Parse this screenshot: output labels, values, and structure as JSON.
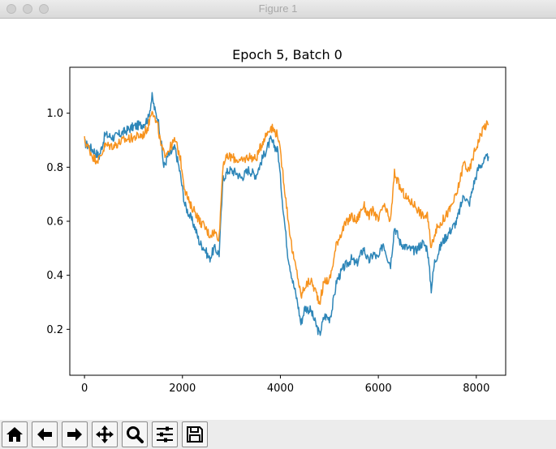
{
  "window": {
    "title": "Figure 1"
  },
  "toolbar": {
    "buttons": [
      {
        "icon": "home-icon"
      },
      {
        "icon": "back-arrow-icon"
      },
      {
        "icon": "forward-arrow-icon"
      },
      {
        "icon": "pan-move-icon"
      },
      {
        "icon": "zoom-magnifier-icon"
      },
      {
        "icon": "configure-subplots-icon"
      },
      {
        "icon": "save-disk-icon"
      }
    ]
  },
  "colors": {
    "series_blue": "#2e86b8",
    "series_orange": "#f7931e"
  },
  "chart_data": {
    "type": "line",
    "title": "Epoch 5, Batch 0",
    "xlabel": "",
    "ylabel": "",
    "xlim": [
      -300,
      8600
    ],
    "ylim": [
      0.03,
      1.17
    ],
    "xticks": [
      0,
      2000,
      4000,
      6000,
      8000
    ],
    "xtick_labels": [
      "0",
      "2000",
      "4000",
      "6000",
      "8000"
    ],
    "yticks": [
      0.2,
      0.4,
      0.6,
      0.8,
      1.0
    ],
    "ytick_labels": [
      "0.2",
      "0.4",
      "0.6",
      "0.8",
      "1.0"
    ],
    "grid": false,
    "series": [
      {
        "color": "#2e86b8",
        "points": [
          [
            0,
            0.89
          ],
          [
            200,
            0.86
          ],
          [
            300,
            0.84
          ],
          [
            420,
            0.92
          ],
          [
            600,
            0.91
          ],
          [
            800,
            0.93
          ],
          [
            1000,
            0.95
          ],
          [
            1200,
            0.96
          ],
          [
            1300,
            0.98
          ],
          [
            1380,
            1.06
          ],
          [
            1450,
            1.0
          ],
          [
            1500,
            0.98
          ],
          [
            1560,
            0.9
          ],
          [
            1620,
            0.8
          ],
          [
            1700,
            0.84
          ],
          [
            1850,
            0.87
          ],
          [
            1950,
            0.78
          ],
          [
            2050,
            0.66
          ],
          [
            2150,
            0.62
          ],
          [
            2250,
            0.58
          ],
          [
            2350,
            0.52
          ],
          [
            2450,
            0.5
          ],
          [
            2550,
            0.46
          ],
          [
            2650,
            0.5
          ],
          [
            2750,
            0.48
          ],
          [
            2790,
            0.62
          ],
          [
            2830,
            0.76
          ],
          [
            2950,
            0.79
          ],
          [
            3100,
            0.78
          ],
          [
            3200,
            0.76
          ],
          [
            3350,
            0.79
          ],
          [
            3500,
            0.77
          ],
          [
            3650,
            0.84
          ],
          [
            3800,
            0.9
          ],
          [
            3950,
            0.86
          ],
          [
            4050,
            0.66
          ],
          [
            4150,
            0.48
          ],
          [
            4250,
            0.38
          ],
          [
            4350,
            0.3
          ],
          [
            4420,
            0.22
          ],
          [
            4500,
            0.28
          ],
          [
            4620,
            0.27
          ],
          [
            4720,
            0.22
          ],
          [
            4800,
            0.18
          ],
          [
            4900,
            0.25
          ],
          [
            5000,
            0.24
          ],
          [
            5050,
            0.27
          ],
          [
            5150,
            0.38
          ],
          [
            5300,
            0.43
          ],
          [
            5450,
            0.46
          ],
          [
            5550,
            0.44
          ],
          [
            5700,
            0.5
          ],
          [
            5800,
            0.45
          ],
          [
            5900,
            0.48
          ],
          [
            6000,
            0.46
          ],
          [
            6100,
            0.52
          ],
          [
            6200,
            0.46
          ],
          [
            6250,
            0.44
          ],
          [
            6330,
            0.58
          ],
          [
            6450,
            0.52
          ],
          [
            6600,
            0.5
          ],
          [
            6750,
            0.49
          ],
          [
            6900,
            0.52
          ],
          [
            7000,
            0.5
          ],
          [
            7080,
            0.35
          ],
          [
            7150,
            0.45
          ],
          [
            7300,
            0.52
          ],
          [
            7450,
            0.56
          ],
          [
            7600,
            0.6
          ],
          [
            7750,
            0.7
          ],
          [
            7850,
            0.66
          ],
          [
            7950,
            0.74
          ],
          [
            8050,
            0.8
          ],
          [
            8150,
            0.82
          ],
          [
            8250,
            0.84
          ]
        ]
      },
      {
        "color": "#f7931e",
        "points": [
          [
            0,
            0.9
          ],
          [
            200,
            0.83
          ],
          [
            300,
            0.83
          ],
          [
            420,
            0.88
          ],
          [
            600,
            0.88
          ],
          [
            800,
            0.9
          ],
          [
            1000,
            0.91
          ],
          [
            1200,
            0.92
          ],
          [
            1300,
            0.95
          ],
          [
            1380,
            1.02
          ],
          [
            1450,
            0.97
          ],
          [
            1500,
            0.95
          ],
          [
            1560,
            0.88
          ],
          [
            1620,
            0.85
          ],
          [
            1700,
            0.86
          ],
          [
            1850,
            0.9
          ],
          [
            1950,
            0.84
          ],
          [
            2050,
            0.72
          ],
          [
            2150,
            0.66
          ],
          [
            2250,
            0.64
          ],
          [
            2350,
            0.6
          ],
          [
            2450,
            0.58
          ],
          [
            2550,
            0.55
          ],
          [
            2650,
            0.56
          ],
          [
            2750,
            0.54
          ],
          [
            2790,
            0.68
          ],
          [
            2830,
            0.82
          ],
          [
            2950,
            0.84
          ],
          [
            3100,
            0.83
          ],
          [
            3200,
            0.82
          ],
          [
            3350,
            0.84
          ],
          [
            3500,
            0.83
          ],
          [
            3650,
            0.9
          ],
          [
            3800,
            0.95
          ],
          [
            3950,
            0.92
          ],
          [
            4050,
            0.78
          ],
          [
            4150,
            0.62
          ],
          [
            4250,
            0.48
          ],
          [
            4350,
            0.4
          ],
          [
            4420,
            0.32
          ],
          [
            4500,
            0.36
          ],
          [
            4620,
            0.38
          ],
          [
            4720,
            0.34
          ],
          [
            4800,
            0.3
          ],
          [
            4900,
            0.38
          ],
          [
            5000,
            0.38
          ],
          [
            5050,
            0.42
          ],
          [
            5150,
            0.52
          ],
          [
            5300,
            0.58
          ],
          [
            5450,
            0.62
          ],
          [
            5550,
            0.6
          ],
          [
            5700,
            0.66
          ],
          [
            5800,
            0.62
          ],
          [
            5900,
            0.64
          ],
          [
            6000,
            0.6
          ],
          [
            6100,
            0.66
          ],
          [
            6200,
            0.62
          ],
          [
            6250,
            0.6
          ],
          [
            6330,
            0.78
          ],
          [
            6450,
            0.72
          ],
          [
            6600,
            0.68
          ],
          [
            6750,
            0.66
          ],
          [
            6900,
            0.62
          ],
          [
            7000,
            0.62
          ],
          [
            7080,
            0.5
          ],
          [
            7150,
            0.56
          ],
          [
            7300,
            0.6
          ],
          [
            7450,
            0.64
          ],
          [
            7600,
            0.7
          ],
          [
            7750,
            0.82
          ],
          [
            7850,
            0.78
          ],
          [
            7950,
            0.85
          ],
          [
            8050,
            0.9
          ],
          [
            8150,
            0.95
          ],
          [
            8250,
            0.96
          ]
        ]
      }
    ]
  }
}
